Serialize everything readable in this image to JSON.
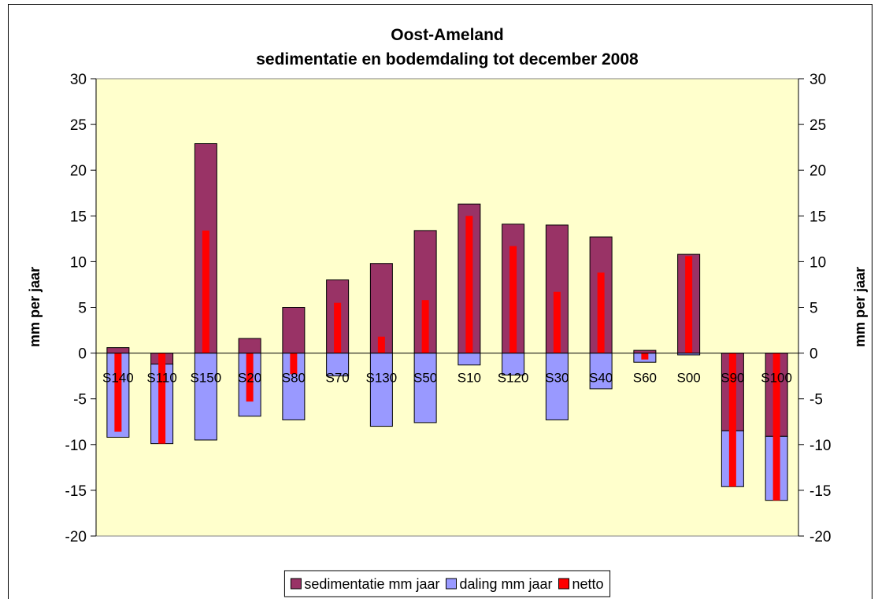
{
  "chart_data": {
    "type": "bar",
    "stacked": true,
    "title": "Oost-Ameland",
    "subtitle": "sedimentatie en bodemdaling tot december 2008",
    "y_label": "mm per jaar",
    "y2_label": "mm per jaar",
    "categories": [
      "S140",
      "S110",
      "S150",
      "S20",
      "S80",
      "S70",
      "S130",
      "S50",
      "S10",
      "S120",
      "S30",
      "S40",
      "S60",
      "S00",
      "S90",
      "S100"
    ],
    "series": [
      {
        "name": "sedimentatie mm jaar",
        "color": "#993366",
        "values": [
          0.6,
          -1.2,
          22.9,
          1.6,
          5.0,
          8.0,
          9.8,
          13.4,
          16.3,
          14.1,
          14.0,
          12.7,
          0.3,
          10.8,
          -8.5,
          -9.1
        ]
      },
      {
        "name": "daling mm jaar",
        "color": "#9999ff",
        "values": [
          -9.2,
          -8.7,
          -9.5,
          -6.9,
          -7.3,
          -2.5,
          -8.0,
          -7.6,
          -1.3,
          -2.4,
          -7.3,
          -3.9,
          -1.0,
          -0.2,
          -6.1,
          -7.0
        ]
      },
      {
        "name": "netto",
        "color": "#ff0000",
        "axis": "y2",
        "values": [
          -8.6,
          -9.9,
          13.4,
          -5.3,
          -2.3,
          5.5,
          1.8,
          5.8,
          15.0,
          11.7,
          6.7,
          8.8,
          -0.7,
          10.6,
          -14.6,
          -16.1
        ]
      }
    ],
    "ylim": [
      -20,
      30
    ],
    "yticks": [
      -20,
      -15,
      -10,
      -5,
      0,
      5,
      10,
      15,
      20,
      25,
      30
    ],
    "y2lim": [
      -20,
      30
    ],
    "y2ticks": [
      -20,
      -15,
      -10,
      -5,
      0,
      5,
      10,
      15,
      20,
      25,
      30
    ],
    "plot_background": "#ffffcc",
    "legend": "bottom"
  }
}
